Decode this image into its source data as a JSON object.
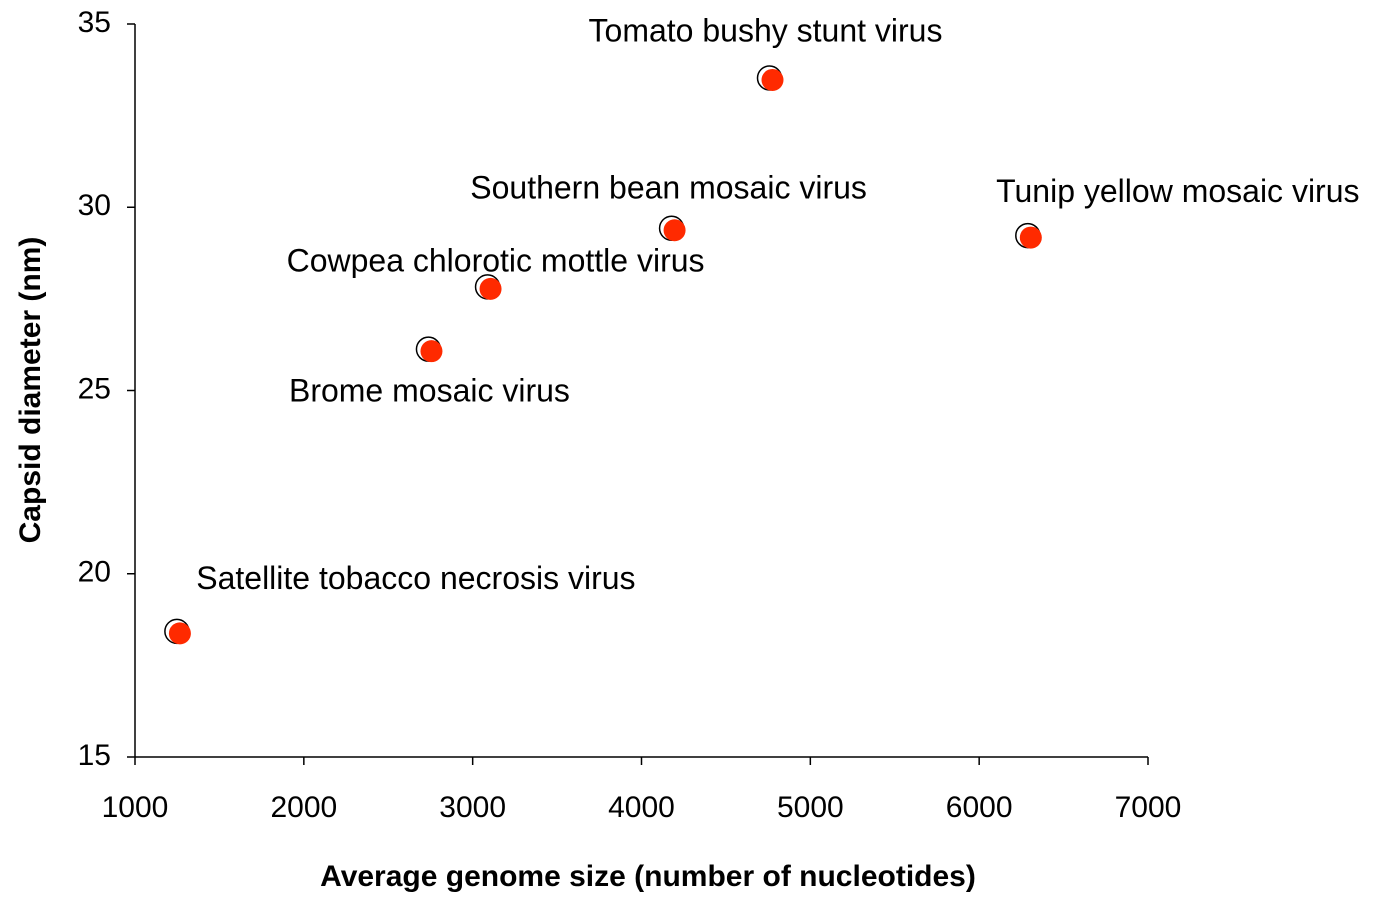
{
  "chart_data": {
    "type": "scatter",
    "x_label": "Average genome size (number of nucleotides)",
    "y_label": "Capsid diameter (nm)",
    "labels": [
      "Satellite tobacco necrosis virus",
      "Brome mosaic virus",
      "Cowpea chlorotic mottle virus",
      "Southern bean mosaic virus",
      "Tomato bushy stunt virus",
      "Tunip yellow mosaic virus"
    ],
    "x": [
      1260,
      2750,
      3100,
      4190,
      4770,
      6300
    ],
    "values": [
      18.4,
      26.1,
      27.8,
      29.4,
      33.5,
      29.2
    ],
    "color": "#ff2a00",
    "xlim": [
      1000,
      7000
    ],
    "xticks": [
      1000,
      2000,
      3000,
      4000,
      5000,
      6000,
      7000
    ],
    "ylim": [
      15,
      35
    ],
    "yticks": [
      15,
      20,
      25,
      30,
      35
    ],
    "grid": false
  }
}
